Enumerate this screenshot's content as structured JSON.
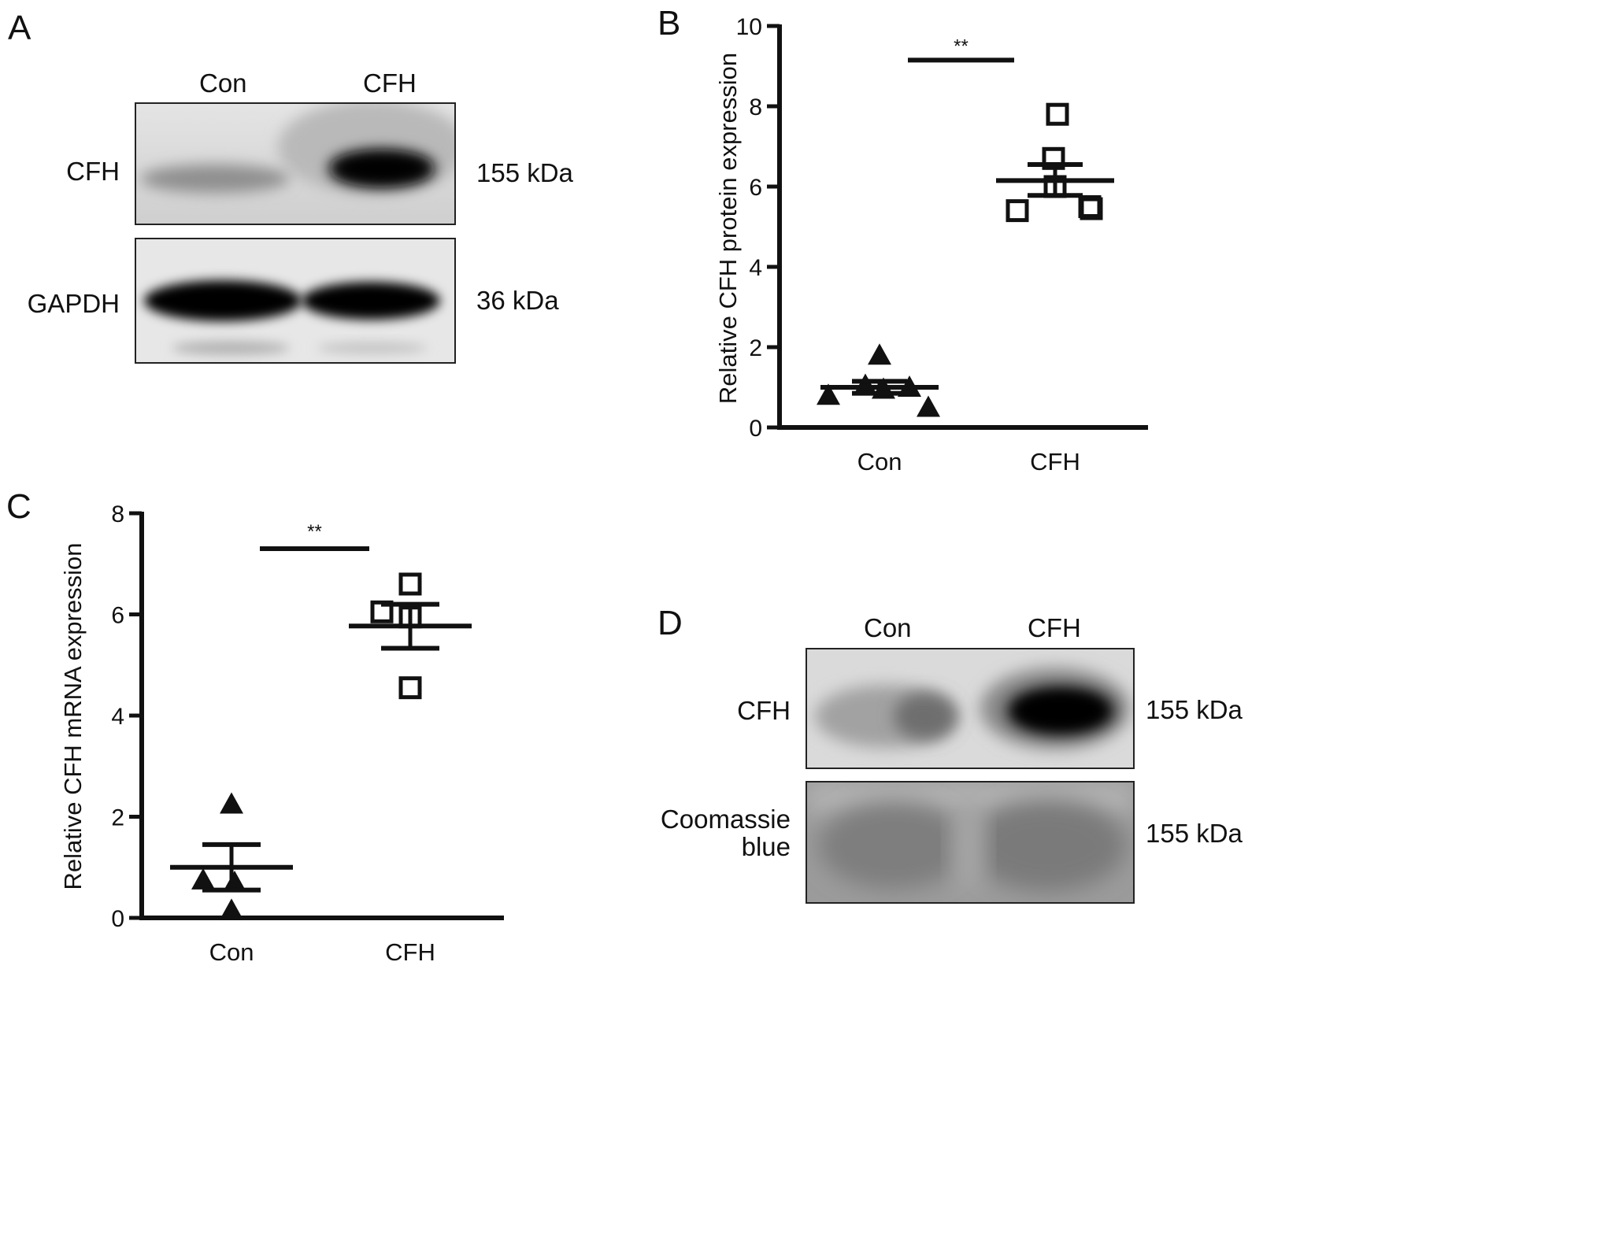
{
  "panels": {
    "A": {
      "letter": "A",
      "lanes": [
        "Con",
        "CFH"
      ],
      "rows": [
        {
          "label": "CFH",
          "size": "155 kDa"
        },
        {
          "label": "GAPDH",
          "size": "36 kDa"
        }
      ]
    },
    "B": {
      "letter": "B"
    },
    "C": {
      "letter": "C"
    },
    "D": {
      "letter": "D",
      "lanes": [
        "Con",
        "CFH"
      ],
      "rows": [
        {
          "label": "CFH",
          "size": "155 kDa"
        },
        {
          "label": "Coomassie blue",
          "label_lines": [
            "Coomassie",
            "blue"
          ],
          "size": "155 kDa"
        }
      ]
    }
  },
  "chart_data": [
    {
      "panel": "B",
      "type": "scatter",
      "categories": [
        "Con",
        "CFH"
      ],
      "ylabel": "Relative CFH protein expression",
      "xlabel": "",
      "ylim": [
        0,
        10
      ],
      "yticks": [
        0,
        2,
        4,
        6,
        8,
        10
      ],
      "grid": false,
      "significance": {
        "between": [
          "Con",
          "CFH"
        ],
        "label": "**",
        "y": 9.15
      },
      "groups": [
        {
          "category": "Con",
          "marker": "filled-triangle",
          "points": [
            0.8,
            1.05,
            0.95,
            1.0,
            1.8,
            0.5
          ],
          "mean": 1.0,
          "sem_low": 0.85,
          "sem_high": 1.15
        },
        {
          "category": "CFH",
          "marker": "open-square",
          "points": [
            5.4,
            6.7,
            6.0,
            7.8,
            5.5,
            5.45
          ],
          "mean": 6.15,
          "sem_low": 5.78,
          "sem_high": 6.55
        }
      ]
    },
    {
      "panel": "C",
      "type": "scatter",
      "categories": [
        "Con",
        "CFH"
      ],
      "ylabel": "Relative CFH mRNA expression",
      "xlabel": "",
      "ylim": [
        0,
        8
      ],
      "yticks": [
        0,
        2,
        4,
        6,
        8
      ],
      "grid": false,
      "significance": {
        "between": [
          "Con",
          "CFH"
        ],
        "label": "**",
        "y": 7.3
      },
      "groups": [
        {
          "category": "Con",
          "marker": "filled-triangle",
          "points": [
            0.75,
            0.7,
            2.25,
            0.15
          ],
          "mean": 1.0,
          "sem_low": 0.55,
          "sem_high": 1.45
        },
        {
          "category": "CFH",
          "marker": "open-square",
          "points": [
            6.05,
            5.95,
            6.6,
            4.55
          ],
          "mean": 5.77,
          "sem_low": 5.33,
          "sem_high": 6.2
        }
      ]
    }
  ]
}
